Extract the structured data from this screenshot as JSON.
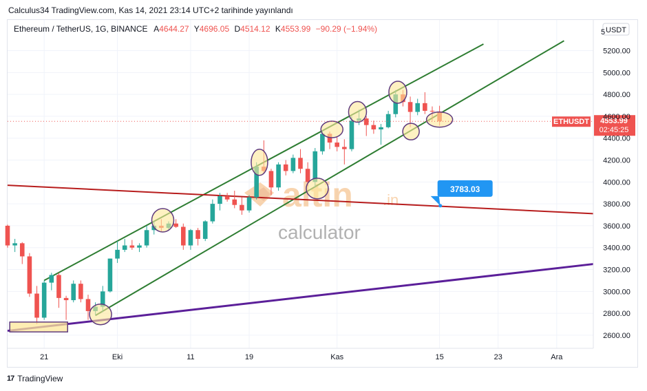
{
  "publication": "Calculus34 TradingView.com, Kas 14, 2021 23:14 UTC+2 tarihinde yayınlandı",
  "header": {
    "symbol": "Ethereum / TetherUS, 1G, BINANCE",
    "open_label": "A",
    "open": "4644.27",
    "high_label": "Y",
    "high": "4696.05",
    "low_label": "D",
    "low": "4514.12",
    "close_label": "K",
    "close": "4553.99",
    "change": "−90.29 (−1.94%)"
  },
  "currency_button": "USDT",
  "price_axis_top_partial": "5",
  "ticker_tag": "ETHUSDT",
  "last_price": "4553.99",
  "countdown": "02:45:25",
  "callout_value": "3783.03",
  "watermark": {
    "brand": "altin",
    "tld": ".in",
    "sub": "calculator"
  },
  "footer_brand": "TradingView",
  "colors": {
    "up": "#26a69a",
    "down": "#ef5350",
    "channel": "#2e7d32",
    "red_line": "#b71c1c",
    "purple_line": "#5b1f99",
    "highlight_fill": "#fde79a",
    "highlight_stroke": "#5e3a7e",
    "callout": "#2196f3",
    "price_tag": "#ef5350",
    "grid": "#f0f3fa"
  },
  "chart_data": {
    "type": "candlestick",
    "symbol": "ETHUSDT",
    "y_ticks": [
      2600,
      2800,
      3000,
      3200,
      3400,
      3600,
      3800,
      4000,
      4200,
      4400,
      4600,
      4800,
      5000,
      5200
    ],
    "y_tick_labels": [
      "2600.00",
      "2800.00",
      "3000.00",
      "3200.00",
      "3400.00",
      "3600.00",
      "3800.00",
      "4000.00",
      "4200.00",
      "4400.00",
      "4600.00",
      "4800.00",
      "5000.00",
      "5200.00"
    ],
    "ylim": [
      2480,
      5480
    ],
    "x_ticks": [
      {
        "day": 21,
        "label": "21"
      },
      {
        "day": 31,
        "label": "Eki"
      },
      {
        "day": 41,
        "label": "11"
      },
      {
        "day": 49,
        "label": "19"
      },
      {
        "day": 61,
        "label": "Kas"
      },
      {
        "day": 75,
        "label": "15"
      },
      {
        "day": 83,
        "label": "23"
      },
      {
        "day": 91,
        "label": "Ara"
      }
    ],
    "xlim": [
      16,
      96
    ],
    "candles": [
      {
        "day": 16,
        "o": 3600,
        "h": 3610,
        "l": 3400,
        "c": 3420
      },
      {
        "day": 17,
        "o": 3420,
        "h": 3480,
        "l": 3360,
        "c": 3440
      },
      {
        "day": 18,
        "o": 3440,
        "h": 3450,
        "l": 3250,
        "c": 3320
      },
      {
        "day": 19,
        "o": 3320,
        "h": 3350,
        "l": 2950,
        "c": 2980
      },
      {
        "day": 20,
        "o": 2980,
        "h": 3050,
        "l": 2700,
        "c": 2760
      },
      {
        "day": 21,
        "o": 2760,
        "h": 3100,
        "l": 2740,
        "c": 3080
      },
      {
        "day": 22,
        "o": 3080,
        "h": 3170,
        "l": 3010,
        "c": 3150
      },
      {
        "day": 23,
        "o": 3150,
        "h": 3170,
        "l": 2850,
        "c": 2940
      },
      {
        "day": 24,
        "o": 2940,
        "h": 2960,
        "l": 2740,
        "c": 2920
      },
      {
        "day": 25,
        "o": 2920,
        "h": 3100,
        "l": 2900,
        "c": 3070
      },
      {
        "day": 26,
        "o": 3070,
        "h": 3100,
        "l": 2900,
        "c": 2930
      },
      {
        "day": 27,
        "o": 2930,
        "h": 2970,
        "l": 2740,
        "c": 2820
      },
      {
        "day": 28,
        "o": 2820,
        "h": 2900,
        "l": 2780,
        "c": 2860
      },
      {
        "day": 29,
        "o": 2860,
        "h": 3050,
        "l": 2810,
        "c": 3000
      },
      {
        "day": 30,
        "o": 3000,
        "h": 3300,
        "l": 2990,
        "c": 3300
      },
      {
        "day": 31,
        "o": 3300,
        "h": 3460,
        "l": 3260,
        "c": 3380
      },
      {
        "day": 32,
        "o": 3380,
        "h": 3480,
        "l": 3360,
        "c": 3420
      },
      {
        "day": 33,
        "o": 3420,
        "h": 3470,
        "l": 3380,
        "c": 3400
      },
      {
        "day": 34,
        "o": 3400,
        "h": 3440,
        "l": 3360,
        "c": 3420
      },
      {
        "day": 35,
        "o": 3420,
        "h": 3600,
        "l": 3400,
        "c": 3560
      },
      {
        "day": 36,
        "o": 3560,
        "h": 3640,
        "l": 3520,
        "c": 3600
      },
      {
        "day": 37,
        "o": 3600,
        "h": 3660,
        "l": 3540,
        "c": 3580
      },
      {
        "day": 38,
        "o": 3580,
        "h": 3640,
        "l": 3560,
        "c": 3620
      },
      {
        "day": 39,
        "o": 3620,
        "h": 3660,
        "l": 3580,
        "c": 3590
      },
      {
        "day": 40,
        "o": 3590,
        "h": 3620,
        "l": 3380,
        "c": 3420
      },
      {
        "day": 41,
        "o": 3420,
        "h": 3570,
        "l": 3380,
        "c": 3560
      },
      {
        "day": 42,
        "o": 3560,
        "h": 3580,
        "l": 3420,
        "c": 3480
      },
      {
        "day": 43,
        "o": 3480,
        "h": 3650,
        "l": 3460,
        "c": 3640
      },
      {
        "day": 44,
        "o": 3640,
        "h": 3840,
        "l": 3620,
        "c": 3800
      },
      {
        "day": 45,
        "o": 3800,
        "h": 3900,
        "l": 3740,
        "c": 3870
      },
      {
        "day": 46,
        "o": 3870,
        "h": 3900,
        "l": 3820,
        "c": 3840
      },
      {
        "day": 47,
        "o": 3840,
        "h": 3920,
        "l": 3760,
        "c": 3790
      },
      {
        "day": 48,
        "o": 3790,
        "h": 3860,
        "l": 3700,
        "c": 3740
      },
      {
        "day": 49,
        "o": 3740,
        "h": 3880,
        "l": 3720,
        "c": 3860
      },
      {
        "day": 50,
        "o": 3860,
        "h": 4180,
        "l": 3840,
        "c": 4140
      },
      {
        "day": 51,
        "o": 4140,
        "h": 4380,
        "l": 4080,
        "c": 4100
      },
      {
        "day": 52,
        "o": 4100,
        "h": 4120,
        "l": 3880,
        "c": 3950
      },
      {
        "day": 53,
        "o": 3950,
        "h": 4180,
        "l": 3920,
        "c": 4160
      },
      {
        "day": 54,
        "o": 4160,
        "h": 4200,
        "l": 4060,
        "c": 4100
      },
      {
        "day": 55,
        "o": 4100,
        "h": 4250,
        "l": 4080,
        "c": 4220
      },
      {
        "day": 56,
        "o": 4220,
        "h": 4300,
        "l": 4080,
        "c": 4120
      },
      {
        "day": 57,
        "o": 4120,
        "h": 4180,
        "l": 3960,
        "c": 4000
      },
      {
        "day": 58,
        "o": 4000,
        "h": 4310,
        "l": 3950,
        "c": 4280
      },
      {
        "day": 59,
        "o": 4280,
        "h": 4470,
        "l": 4250,
        "c": 4440
      },
      {
        "day": 60,
        "o": 4440,
        "h": 4460,
        "l": 4300,
        "c": 4360
      },
      {
        "day": 61,
        "o": 4360,
        "h": 4410,
        "l": 4280,
        "c": 4320
      },
      {
        "day": 62,
        "o": 4320,
        "h": 4390,
        "l": 4160,
        "c": 4300
      },
      {
        "day": 63,
        "o": 4300,
        "h": 4600,
        "l": 4280,
        "c": 4560
      },
      {
        "day": 64,
        "o": 4560,
        "h": 4660,
        "l": 4520,
        "c": 4580
      },
      {
        "day": 65,
        "o": 4580,
        "h": 4600,
        "l": 4420,
        "c": 4520
      },
      {
        "day": 66,
        "o": 4520,
        "h": 4560,
        "l": 4440,
        "c": 4480
      },
      {
        "day": 67,
        "o": 4480,
        "h": 4530,
        "l": 4340,
        "c": 4500
      },
      {
        "day": 68,
        "o": 4500,
        "h": 4650,
        "l": 4490,
        "c": 4620
      },
      {
        "day": 69,
        "o": 4620,
        "h": 4840,
        "l": 4590,
        "c": 4800
      },
      {
        "day": 70,
        "o": 4800,
        "h": 4840,
        "l": 4690,
        "c": 4730
      },
      {
        "day": 71,
        "o": 4730,
        "h": 4780,
        "l": 4500,
        "c": 4640
      },
      {
        "day": 72,
        "o": 4640,
        "h": 4760,
        "l": 4610,
        "c": 4720
      },
      {
        "day": 73,
        "o": 4720,
        "h": 4820,
        "l": 4620,
        "c": 4650
      },
      {
        "day": 74,
        "o": 4650,
        "h": 4690,
        "l": 4560,
        "c": 4644
      },
      {
        "day": 75,
        "o": 4644,
        "h": 4696,
        "l": 4514,
        "c": 4554
      }
    ],
    "lines": [
      {
        "name": "channel-upper",
        "from": [
          21,
          3100
        ],
        "to": [
          81,
          5260
        ]
      },
      {
        "name": "channel-lower",
        "from": [
          28,
          2780
        ],
        "to": [
          92,
          5290
        ]
      },
      {
        "name": "red-line",
        "from": [
          16,
          3970
        ],
        "to": [
          96,
          3710
        ]
      },
      {
        "name": "purple-line",
        "from": [
          16,
          2640
        ],
        "to": [
          96,
          3250
        ]
      }
    ],
    "highlight_ellipses": [
      {
        "day": 28.7,
        "price": 2790
      },
      {
        "day": 37.2,
        "price": 3650
      },
      {
        "day": 50.4,
        "price": 4180
      },
      {
        "day": 58.3,
        "price": 3940
      },
      {
        "day": 60.3,
        "price": 4480
      },
      {
        "day": 63.8,
        "price": 4640
      },
      {
        "day": 69.3,
        "price": 4820
      },
      {
        "day": 71.1,
        "price": 4460
      },
      {
        "day": 75.0,
        "price": 4570
      }
    ],
    "highlight_rect": {
      "day_start": 16.3,
      "day_end": 24.2,
      "price_low": 2630,
      "price_high": 2720
    },
    "callout_point": {
      "day": 75.1,
      "price": 3783.03
    }
  }
}
